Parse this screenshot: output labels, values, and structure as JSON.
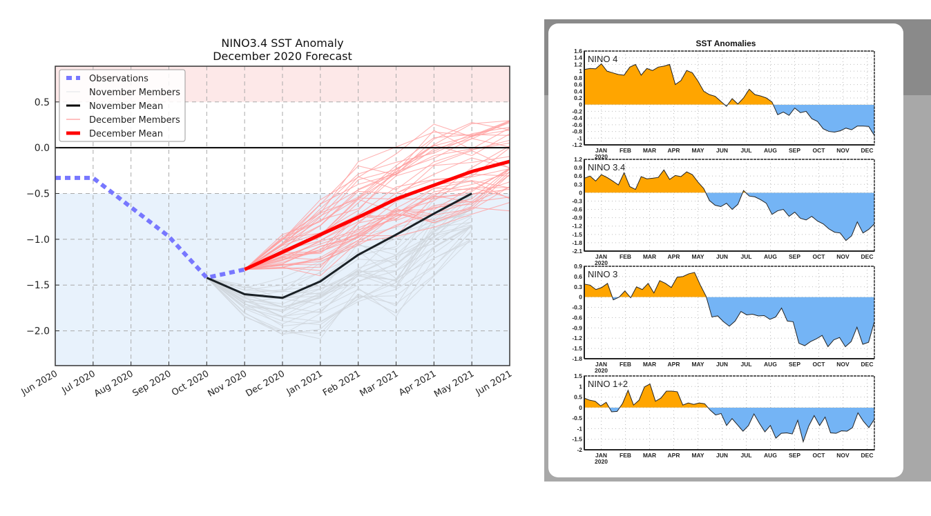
{
  "chart_data": [
    {
      "type": "line",
      "title": "NINO3.4 SST Anomaly",
      "subtitle": "December 2020 Forecast",
      "xlabel": "",
      "ylabel": "",
      "x": [
        "Jun 2020",
        "Jul 2020",
        "Aug 2020",
        "Sep 2020",
        "Oct 2020",
        "Nov 2020",
        "Dec 2020",
        "Jan 2021",
        "Feb 2021",
        "Mar 2021",
        "Apr 2021",
        "May 2021",
        "Jun 2021"
      ],
      "ylim": [
        -2.38,
        0.89
      ],
      "yticks": [
        0.5,
        0.0,
        -0.5,
        -1.0,
        -1.5,
        -2.0
      ],
      "ytick_labels": [
        "0.5",
        "0.0",
        "−0.5",
        "−1.0",
        "−1.5",
        "−2.0"
      ],
      "grid": true,
      "bands": [
        {
          "name": "El Nino threshold region",
          "from": 0.5,
          "to": 0.89,
          "color": "#fde8e8"
        },
        {
          "name": "La Nina threshold region",
          "from": -2.38,
          "to": -0.5,
          "color": "#e8f2fc"
        }
      ],
      "zero_line": 0.0,
      "legend_position": "top-left",
      "legend": [
        {
          "label": "Observations",
          "style": "dotted",
          "color": "#7777ff"
        },
        {
          "label": "November Members",
          "style": "thin",
          "color": "#d8dde2"
        },
        {
          "label": "November Mean",
          "style": "solid",
          "color": "#000000"
        },
        {
          "label": "December Members",
          "style": "thin",
          "color": "#ffaaaa"
        },
        {
          "label": "December Mean",
          "style": "thick",
          "color": "#ff0000"
        }
      ],
      "series": [
        {
          "name": "Observations",
          "start_index": 0,
          "values": [
            -0.33,
            -0.33,
            -0.65,
            -0.97,
            -1.42,
            -1.33
          ]
        },
        {
          "name": "November Mean",
          "start_index": 4,
          "values": [
            -1.42,
            -1.6,
            -1.64,
            -1.46,
            -1.17,
            -0.95,
            -0.72,
            -0.5
          ]
        },
        {
          "name": "December Mean",
          "start_index": 5,
          "values": [
            -1.33,
            -1.14,
            -0.95,
            -0.76,
            -0.56,
            -0.41,
            -0.26,
            -0.15
          ]
        }
      ],
      "member_spread": {
        "November Members": {
          "start_index": 4,
          "count": 30,
          "min": [
            -1.42,
            -1.9,
            -2.1,
            -2.12,
            -1.85,
            -2.05,
            -1.5,
            -1.2
          ],
          "max": [
            -1.42,
            -1.4,
            -1.35,
            -1.1,
            -0.8,
            -0.6,
            -0.4,
            -0.2
          ]
        },
        "December Members": {
          "start_index": 5,
          "count": 40,
          "min": [
            -1.33,
            -1.38,
            -1.4,
            -1.25,
            -1.0,
            -0.9,
            -0.85,
            -0.78
          ],
          "max": [
            -1.33,
            -0.85,
            -0.5,
            -0.05,
            0.05,
            0.3,
            0.5,
            0.62
          ]
        }
      }
    },
    {
      "type": "area",
      "title": "SST Anomalies",
      "panels": [
        {
          "label": "NINO  4",
          "ylim": [
            -1.2,
            1.6
          ],
          "yticks": [
            1.6,
            1.4,
            1.2,
            1,
            0.8,
            0.6,
            0.4,
            0.2,
            0,
            -0.2,
            -0.4,
            -0.6,
            -0.8,
            -1,
            -1.2
          ],
          "values": [
            1.05,
            1.08,
            1.07,
            1.22,
            1.0,
            0.95,
            0.9,
            0.88,
            1.12,
            1.2,
            0.88,
            1.08,
            1.02,
            1.12,
            1.15,
            1.2,
            0.6,
            0.72,
            1.02,
            0.95,
            0.7,
            0.4,
            0.3,
            0.25,
            0.1,
            -0.05,
            0.18,
            0.02,
            0.2,
            0.46,
            0.3,
            0.26,
            0.2,
            0.08,
            -0.3,
            -0.22,
            -0.32,
            -0.1,
            -0.24,
            -0.2,
            -0.42,
            -0.5,
            -0.72,
            -0.8,
            -0.82,
            -0.78,
            -0.7,
            -0.75,
            -0.64,
            -0.64,
            -0.65,
            -0.92
          ]
        },
        {
          "label": "NINO  3.4",
          "ylim": [
            -2.1,
            1.2
          ],
          "yticks": [
            1.2,
            0.9,
            0.6,
            0.3,
            0,
            -0.3,
            -0.6,
            -0.9,
            -1.2,
            -1.5,
            -1.8,
            -2.1
          ],
          "values": [
            0.52,
            0.6,
            0.42,
            0.65,
            0.55,
            0.42,
            0.28,
            0.72,
            0.22,
            0.12,
            0.58,
            0.5,
            0.52,
            0.55,
            0.82,
            0.48,
            0.62,
            0.58,
            0.75,
            0.65,
            0.38,
            0.15,
            -0.28,
            -0.45,
            -0.5,
            -0.38,
            -0.6,
            -0.42,
            0.08,
            -0.12,
            -0.15,
            -0.25,
            -0.38,
            -0.78,
            -0.65,
            -0.6,
            -0.85,
            -0.7,
            -0.92,
            -0.98,
            -0.85,
            -1.02,
            -1.12,
            -1.3,
            -1.42,
            -1.45,
            -1.72,
            -1.55,
            -1.05,
            -1.45,
            -1.32,
            -1.12
          ]
        },
        {
          "label": "NINO  3",
          "ylim": [
            -1.8,
            0.9
          ],
          "yticks": [
            0.9,
            0.6,
            0.3,
            0,
            -0.3,
            -0.6,
            -0.9,
            -1.2,
            -1.5,
            -1.8
          ],
          "values": [
            0.38,
            0.35,
            0.22,
            0.28,
            0.4,
            -0.08,
            0.0,
            0.18,
            -0.02,
            0.3,
            0.22,
            0.4,
            0.12,
            0.48,
            0.4,
            0.28,
            0.58,
            0.6,
            0.68,
            0.72,
            0.35,
            0.02,
            -0.58,
            -0.55,
            -0.72,
            -0.85,
            -0.7,
            -0.42,
            -0.52,
            -0.5,
            -0.55,
            -0.54,
            -0.65,
            -0.58,
            -0.32,
            -0.7,
            -0.72,
            -1.35,
            -1.42,
            -1.3,
            -1.22,
            -1.12,
            -1.45,
            -1.25,
            -1.18,
            -1.45,
            -1.3,
            -0.88,
            -1.38,
            -1.32,
            -0.72
          ]
        },
        {
          "label": "NINO  1+2",
          "ylim": [
            -2,
            1.5
          ],
          "yticks": [
            1.5,
            1,
            0.5,
            0,
            -0.5,
            -1,
            -1.5,
            -2
          ],
          "values": [
            0.45,
            0.35,
            0.3,
            0.08,
            0.25,
            -0.2,
            -0.18,
            0.2,
            0.82,
            0.12,
            0.35,
            0.98,
            1.12,
            0.3,
            0.45,
            0.78,
            0.78,
            0.75,
            0.12,
            0.22,
            0.15,
            0.22,
            0.18,
            -0.12,
            -0.35,
            -0.28,
            -0.85,
            -0.52,
            -0.82,
            -1.12,
            -0.85,
            -0.3,
            -0.75,
            -1.15,
            -0.85,
            -1.45,
            -1.22,
            -1.2,
            -1.25,
            -0.6,
            -1.62,
            -0.88,
            -0.38,
            -0.85,
            -0.45,
            -1.2,
            -1.22,
            -1.1,
            -1.12,
            -0.95,
            -0.25,
            -0.65,
            -0.95,
            -0.55
          ]
        }
      ],
      "xtick_labels": [
        "JAN",
        "FEB",
        "MAR",
        "APR",
        "MAY",
        "JUN",
        "JUL",
        "AUG",
        "SEP",
        "OCT",
        "NOV",
        "DEC"
      ],
      "year_label": "2020",
      "positive_color": "#ffa500",
      "negative_color": "#74b4f5"
    }
  ]
}
